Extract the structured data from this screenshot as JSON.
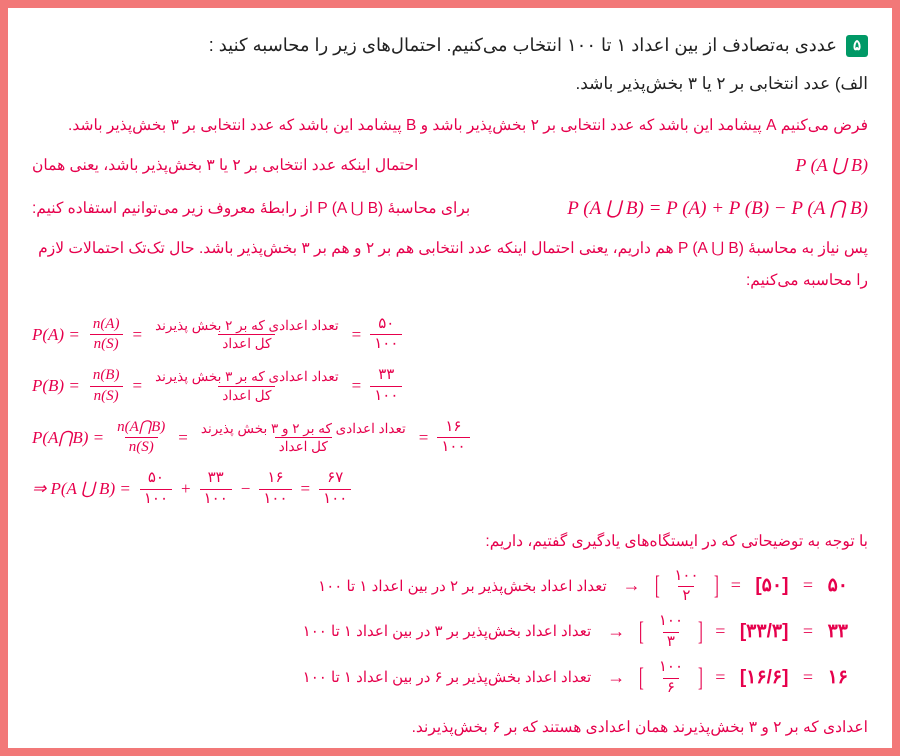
{
  "problem": {
    "badge": "۵",
    "question_line": "عددی به‌تصادف از بین اعداد ۱ تا ۱۰۰ انتخاب می‌کنیم. احتمال‌های زیر را محاسبه کنید :",
    "part_a": "الف) عدد انتخابی بر ۲ یا ۳ بخش‌پذیر باشد."
  },
  "solution": {
    "p1": "فرض می‌کنیم A پیشامد این باشد که عدد انتخابی بر ۲ بخش‌پذیر باشد و B پیشامد این باشد که عدد انتخابی بر ۳ بخش‌پذیر باشد.",
    "p2_text": "احتمال اینکه عدد انتخابی بر ۲ یا ۳ بخش‌پذیر باشد، یعنی همان",
    "p2_formula": "P (A ⋃ B)",
    "p3_text": "برای محاسبهٔ P (A ⋃ B) از رابطهٔ معروف زیر می‌توانیم استفاده کنیم:",
    "p3_formula": "P (A ⋃ B) = P (A) + P (B) − P (A ⋂ B)",
    "p4": "پس نیاز به محاسبهٔ P (A ⋃ B) هم داریم، یعنی احتمال اینکه عدد انتخابی هم بر ۲ و هم بر ۳ بخش‌پذیر باشد. حال تک‌تک احتمالات لازم را محاسبه می‌کنیم:",
    "eqs": {
      "pa_label": "P(A) =",
      "na": "n(A)",
      "ns": "n(S)",
      "pa_text_num": "تعداد اعدادی که بر ۲ بخش پذیرند",
      "denom_text": "کل اعداد",
      "pa_val_num": "۵۰",
      "pa_val_den": "۱۰۰",
      "pb_label": "P(B) =",
      "nb": "n(B)",
      "pb_text_num": "تعداد اعدادی که بر ۳ بخش پذیرند",
      "pb_val_num": "۳۳",
      "pb_val_den": "۱۰۰",
      "pab_label": "P(A⋂B) =",
      "nab": "n(A⋂B)",
      "pab_text_num": "تعداد اعدادی که بر ۲ و ۳ بخش پذیرند",
      "pab_val_num": "۱۶",
      "pab_val_den": "۱۰۰",
      "result_lead": "⇒ P(A ⋃ B) =",
      "r1n": "۵۰",
      "r1d": "۱۰۰",
      "r2n": "۳۳",
      "r2d": "۱۰۰",
      "r3n": "۱۶",
      "r3d": "۱۰۰",
      "r4n": "۶۷",
      "r4d": "۱۰۰"
    },
    "p5": "با توجه به توضیحاتی که در ایستگاه‌های یادگیری گفتیم، داریم:",
    "floors": [
      {
        "fn": "۱۰۰",
        "fd": "۲",
        "mid": "[۵۰]",
        "res": "۵۰",
        "desc": "تعداد اعداد بخش‌پذیر بر ۲ در بین اعداد ۱ تا ۱۰۰"
      },
      {
        "fn": "۱۰۰",
        "fd": "۳",
        "mid": "[۳۳/۳]",
        "res": "۳۳",
        "desc": "تعداد اعداد بخش‌پذیر بر ۳ در بین اعداد ۱ تا ۱۰۰"
      },
      {
        "fn": "۱۰۰",
        "fd": "۶",
        "mid": "[۱۶/۶]",
        "res": "۱۶",
        "desc": "تعداد اعداد بخش‌پذیر بر ۶ در بین اعداد ۱ تا ۱۰۰"
      }
    ],
    "p6": "اعدادی که بر ۲ و ۳ بخش‌پذیرند همان اعدادی هستند که بر ۶ بخش‌پذیرند."
  },
  "colors": {
    "frame": "#f27878",
    "accent": "#e6004c",
    "badge": "#009966",
    "text": "#222222",
    "bg": "#ffffff"
  }
}
